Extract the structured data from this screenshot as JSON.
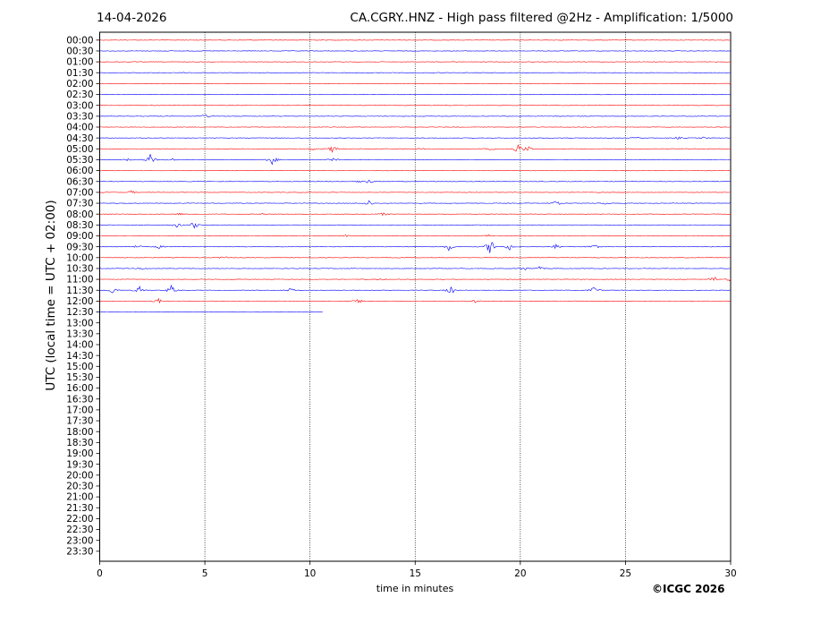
{
  "header": {
    "date": "14-04-2026",
    "title": "CA.CGRY..HNZ - High pass filtered @2Hz - Amplification: 1/5000"
  },
  "footer": {
    "credit": "©ICGC 2026"
  },
  "colors": {
    "odd_trace": "#ff0000",
    "even_trace": "#0000ff",
    "grid": "#000000"
  },
  "chart_data": {
    "type": "line",
    "subtype": "helicorder",
    "xlabel": "time in minutes",
    "ylabel": "UTC (local time = UTC + 02:00)",
    "xlim": [
      0,
      30
    ],
    "xticks": [
      0,
      5,
      10,
      15,
      20,
      25,
      30
    ],
    "xgrid": [
      5,
      10,
      15,
      20,
      25
    ],
    "row_labels": [
      "00:00",
      "00:30",
      "01:00",
      "01:30",
      "02:00",
      "02:30",
      "03:00",
      "03:30",
      "04:00",
      "04:30",
      "05:00",
      "05:30",
      "06:00",
      "06:30",
      "07:00",
      "07:30",
      "08:00",
      "08:30",
      "09:00",
      "09:30",
      "10:00",
      "10:30",
      "11:00",
      "11:30",
      "12:00",
      "12:30",
      "13:00",
      "13:30",
      "14:00",
      "14:30",
      "15:00",
      "15:30",
      "16:00",
      "16:30",
      "17:00",
      "17:30",
      "18:00",
      "18:30",
      "19:00",
      "19:30",
      "20:00",
      "20:30",
      "21:00",
      "21:30",
      "22:00",
      "22:30",
      "23:00",
      "23:30"
    ],
    "rows_recorded": 26,
    "last_row_end_minute": 10.6,
    "events": [
      {
        "row": 3,
        "minute": 4.0,
        "amp": 0.1
      },
      {
        "row": 4,
        "minute": 30.0,
        "amp": 0.2
      },
      {
        "row": 7,
        "minute": 5.0,
        "amp": 0.3
      },
      {
        "row": 9,
        "minute": 25.5,
        "amp": 0.15
      },
      {
        "row": 9,
        "minute": 27.5,
        "amp": 0.2
      },
      {
        "row": 9,
        "minute": 28.7,
        "amp": 0.15
      },
      {
        "row": 10,
        "minute": 10.1,
        "amp": 0.25
      },
      {
        "row": 10,
        "minute": 11.1,
        "amp": 0.7
      },
      {
        "row": 10,
        "minute": 15.4,
        "amp": 0.3
      },
      {
        "row": 10,
        "minute": 18.6,
        "amp": 0.25
      },
      {
        "row": 10,
        "minute": 19.9,
        "amp": 0.9
      },
      {
        "row": 10,
        "minute": 20.4,
        "amp": 0.4
      },
      {
        "row": 11,
        "minute": 1.3,
        "amp": 0.2
      },
      {
        "row": 11,
        "minute": 2.4,
        "amp": 0.9
      },
      {
        "row": 11,
        "minute": 3.4,
        "amp": 0.2
      },
      {
        "row": 11,
        "minute": 8.2,
        "amp": 0.9
      },
      {
        "row": 11,
        "minute": 11.1,
        "amp": 0.3
      },
      {
        "row": 13,
        "minute": 12.4,
        "amp": 0.2
      },
      {
        "row": 13,
        "minute": 12.8,
        "amp": 0.35
      },
      {
        "row": 14,
        "minute": 1.5,
        "amp": 0.3
      },
      {
        "row": 15,
        "minute": 12.8,
        "amp": 0.55
      },
      {
        "row": 15,
        "minute": 21.7,
        "amp": 0.4
      },
      {
        "row": 15,
        "minute": 24.0,
        "amp": 0.2
      },
      {
        "row": 16,
        "minute": 3.8,
        "amp": 0.2
      },
      {
        "row": 16,
        "minute": 7.8,
        "amp": 0.2
      },
      {
        "row": 16,
        "minute": 13.5,
        "amp": 0.3
      },
      {
        "row": 17,
        "minute": 3.7,
        "amp": 0.5
      },
      {
        "row": 17,
        "minute": 4.5,
        "amp": 0.6
      },
      {
        "row": 18,
        "minute": 11.7,
        "amp": 0.2
      },
      {
        "row": 18,
        "minute": 18.5,
        "amp": 0.3
      },
      {
        "row": 19,
        "minute": 1.8,
        "amp": 0.3
      },
      {
        "row": 19,
        "minute": 2.8,
        "amp": 0.3
      },
      {
        "row": 19,
        "minute": 16.6,
        "amp": 0.6
      },
      {
        "row": 19,
        "minute": 18.6,
        "amp": 1.6
      },
      {
        "row": 19,
        "minute": 19.5,
        "amp": 0.6
      },
      {
        "row": 19,
        "minute": 21.7,
        "amp": 0.4
      },
      {
        "row": 19,
        "minute": 23.5,
        "amp": 0.5
      },
      {
        "row": 20,
        "minute": 5.9,
        "amp": 0.25
      },
      {
        "row": 21,
        "minute": 2.1,
        "amp": 0.2
      },
      {
        "row": 21,
        "minute": 20.2,
        "amp": 0.35
      },
      {
        "row": 21,
        "minute": 20.9,
        "amp": 0.3
      },
      {
        "row": 22,
        "minute": 13.4,
        "amp": 0.2
      },
      {
        "row": 22,
        "minute": 29.2,
        "amp": 0.5
      },
      {
        "row": 22,
        "minute": 30.0,
        "amp": 0.4
      },
      {
        "row": 23,
        "minute": 0.6,
        "amp": 0.6
      },
      {
        "row": 23,
        "minute": 1.9,
        "amp": 0.7
      },
      {
        "row": 23,
        "minute": 3.4,
        "amp": 0.8
      },
      {
        "row": 23,
        "minute": 9.1,
        "amp": 0.4
      },
      {
        "row": 23,
        "minute": 16.7,
        "amp": 0.7
      },
      {
        "row": 23,
        "minute": 23.5,
        "amp": 0.7
      },
      {
        "row": 24,
        "minute": 2.8,
        "amp": 0.5
      },
      {
        "row": 24,
        "minute": 12.3,
        "amp": 0.35
      },
      {
        "row": 24,
        "minute": 17.8,
        "amp": 0.35
      }
    ]
  }
}
